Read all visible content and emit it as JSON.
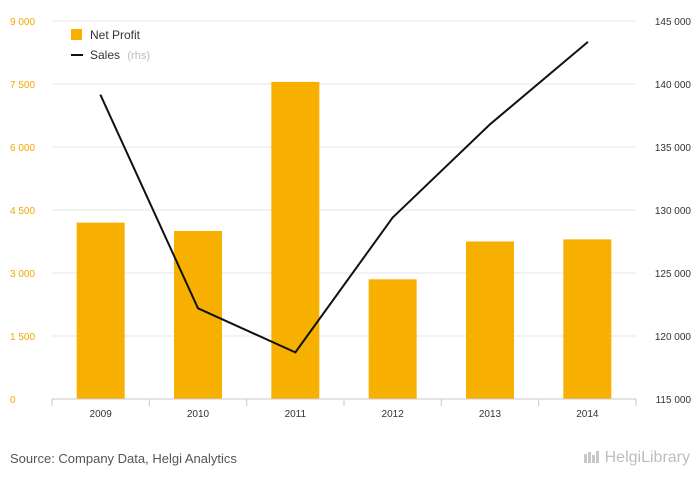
{
  "chart_data": {
    "type": "bar",
    "categories": [
      "2009",
      "2010",
      "2011",
      "2012",
      "2013",
      "2014"
    ],
    "series": [
      {
        "name": "Net Profit",
        "type": "bar",
        "axis": "left",
        "color": "#f7b000",
        "values": [
          4200,
          4000,
          7550,
          2850,
          3750,
          3800
        ]
      },
      {
        "name": "Sales",
        "type": "line",
        "axis": "right",
        "color": "#111111",
        "values": [
          139100,
          122200,
          118700,
          129400,
          136800,
          143300
        ]
      }
    ],
    "left_axis": {
      "ticks": [
        "0",
        "1 500",
        "3 000",
        "4 500",
        "6 000",
        "7 500",
        "9 000"
      ],
      "ylim": [
        0,
        9000
      ]
    },
    "right_axis": {
      "ticks": [
        "115 000",
        "120 000",
        "125 000",
        "130 000",
        "135 000",
        "140 000",
        "145 000"
      ],
      "ylim": [
        115000,
        145000
      ]
    },
    "legend": {
      "placement": "top-left",
      "items": [
        {
          "label": "Net Profit",
          "sub": ""
        },
        {
          "label": "Sales",
          "sub": "(rhs)"
        }
      ]
    },
    "grid": true
  },
  "footer": {
    "source": "Source: Company Data, Helgi Analytics",
    "logo_text": "HelgiLibrary"
  }
}
